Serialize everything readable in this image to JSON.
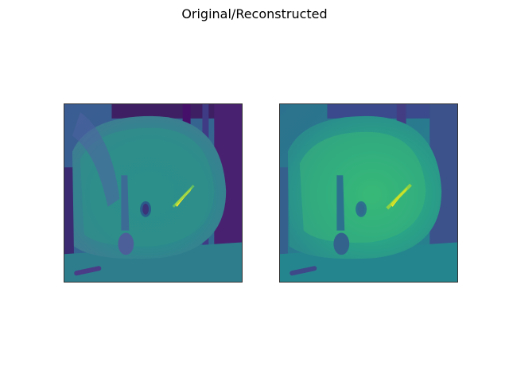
{
  "figure": {
    "title": "Original/Reconstructed"
  },
  "palette": {
    "colormap": "viridis",
    "dark": "#440154",
    "deep_blue": "#3b528b",
    "teal": "#21918c",
    "green": "#5ec962",
    "yellow": "#fde725"
  },
  "images": [
    {
      "name": "original",
      "subject": "sink viewed from above"
    },
    {
      "name": "reconstructed",
      "subject": "sink viewed from above"
    }
  ]
}
